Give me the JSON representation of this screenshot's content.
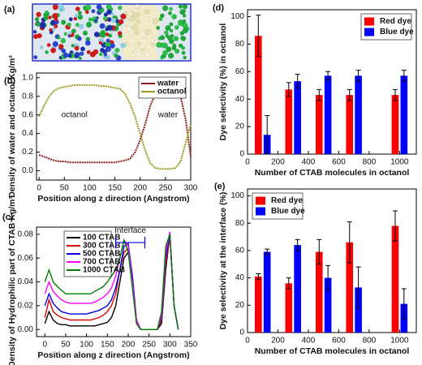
{
  "image_panel": {
    "label": "(a)"
  },
  "chart_data": [
    {
      "type": "line",
      "panel_label": "(b)",
      "x_label": "Position along z direction (Angstrom)",
      "y_label": "Density of water and octanol Kg/m³",
      "x": [
        0,
        10,
        20,
        30,
        40,
        50,
        60,
        70,
        80,
        90,
        100,
        110,
        120,
        130,
        140,
        150,
        160,
        170,
        180,
        190,
        200,
        210,
        220,
        230,
        240,
        250,
        260,
        270,
        280,
        290,
        300
      ],
      "series": [
        {
          "name": "water",
          "color": "#8b1a1a",
          "values": [
            0.17,
            0.15,
            0.13,
            0.11,
            0.1,
            0.1,
            0.09,
            0.09,
            0.09,
            0.09,
            0.09,
            0.09,
            0.09,
            0.09,
            0.09,
            0.09,
            0.1,
            0.11,
            0.13,
            0.2,
            0.33,
            0.5,
            0.7,
            0.82,
            0.85,
            0.86,
            0.86,
            0.85,
            0.8,
            0.55,
            0.15
          ]
        },
        {
          "name": "octanol",
          "color": "#9a9a1a",
          "values": [
            0.58,
            0.7,
            0.8,
            0.86,
            0.89,
            0.9,
            0.91,
            0.92,
            0.92,
            0.92,
            0.92,
            0.92,
            0.91,
            0.91,
            0.9,
            0.89,
            0.88,
            0.83,
            0.72,
            0.58,
            0.4,
            0.22,
            0.08,
            0.03,
            0.02,
            0.02,
            0.02,
            0.03,
            0.1,
            0.3,
            0.5
          ]
        }
      ],
      "annotations": [
        "octanol",
        "water"
      ],
      "xlim": [
        -5,
        300
      ],
      "ylim": [
        -0.1,
        1.05
      ],
      "xticks": [
        0,
        50,
        100,
        150,
        200,
        250,
        300
      ],
      "yticks": [
        {
          "value": 0,
          "label": "0.0"
        },
        {
          "value": 0.2,
          "label": "0.2"
        },
        {
          "value": 0.4,
          "label": "0.4"
        },
        {
          "value": 0.6,
          "label": "0.6"
        },
        {
          "value": 0.8,
          "label": "0.8"
        },
        {
          "value": 1,
          "label": "1.0"
        }
      ],
      "legend": "top-right"
    },
    {
      "type": "line",
      "panel_label": "(c)",
      "x_label": "Position along z direction (Angstrom)",
      "y_label": "Density of Hydrophilic part of CTAB Kg/m³",
      "x": [
        0,
        10,
        20,
        30,
        40,
        50,
        60,
        70,
        80,
        90,
        100,
        110,
        120,
        130,
        140,
        150,
        160,
        170,
        180,
        190,
        200,
        210,
        220,
        230,
        240,
        250,
        260,
        270,
        280,
        290,
        300,
        310,
        320
      ],
      "series": [
        {
          "name": "100 CTAB",
          "color": "#000000",
          "values": [
            0.005,
            0.015,
            0.008,
            0.005,
            0.004,
            0.004,
            0.003,
            0.003,
            0.003,
            0.003,
            0.003,
            0.003,
            0.003,
            0.004,
            0.005,
            0.006,
            0.01,
            0.02,
            0.04,
            0.06,
            0.065,
            0.04,
            0.005,
            0,
            0,
            0,
            0,
            0,
            0.005,
            0.05,
            0.08,
            0.02,
            0
          ]
        },
        {
          "name": "300 CTAB",
          "color": "#e00000",
          "values": [
            0.01,
            0.025,
            0.015,
            0.012,
            0.01,
            0.009,
            0.008,
            0.008,
            0.008,
            0.008,
            0.008,
            0.008,
            0.009,
            0.01,
            0.012,
            0.015,
            0.02,
            0.03,
            0.05,
            0.065,
            0.068,
            0.045,
            0.008,
            0,
            0,
            0,
            0,
            0,
            0.008,
            0.055,
            0.078,
            0.02,
            0
          ]
        },
        {
          "name": "500 CTAB",
          "color": "#0000e0",
          "values": [
            0.02,
            0.03,
            0.022,
            0.018,
            0.015,
            0.014,
            0.013,
            0.013,
            0.013,
            0.013,
            0.013,
            0.014,
            0.015,
            0.016,
            0.018,
            0.02,
            0.025,
            0.035,
            0.05,
            0.07,
            0.072,
            0.045,
            0.008,
            0,
            0,
            0,
            0,
            0,
            0.01,
            0.06,
            0.08,
            0.02,
            0
          ]
        },
        {
          "name": "700 CTAB",
          "color": "#ff00ff",
          "values": [
            0.03,
            0.04,
            0.032,
            0.028,
            0.025,
            0.023,
            0.022,
            0.022,
            0.022,
            0.022,
            0.022,
            0.022,
            0.023,
            0.025,
            0.027,
            0.03,
            0.035,
            0.045,
            0.06,
            0.075,
            0.07,
            0.04,
            0.008,
            0,
            0,
            0,
            0,
            0,
            0.012,
            0.065,
            0.082,
            0.02,
            0
          ]
        },
        {
          "name": "1000 CTAB",
          "color": "#008000",
          "values": [
            0.04,
            0.05,
            0.04,
            0.036,
            0.033,
            0.03,
            0.03,
            0.03,
            0.03,
            0.03,
            0.03,
            0.03,
            0.032,
            0.034,
            0.036,
            0.04,
            0.045,
            0.05,
            0.06,
            0.075,
            0.065,
            0.035,
            0.005,
            0,
            0,
            0,
            0,
            0,
            0.015,
            0.07,
            0.08,
            0.02,
            0
          ]
        }
      ],
      "annotations": [
        "Interface"
      ],
      "xlim": [
        -20,
        350
      ],
      "ylim": [
        -0.006,
        0.086
      ],
      "xticks": [
        0,
        50,
        100,
        150,
        200,
        250,
        300,
        350
      ],
      "yticks": [
        {
          "value": 0,
          "label": "0.00"
        },
        {
          "value": 0.02,
          "label": "0.02"
        },
        {
          "value": 0.04,
          "label": "0.04"
        },
        {
          "value": 0.06,
          "label": "0.06"
        },
        {
          "value": 0.08,
          "label": "0.08"
        }
      ],
      "legend": "top-left"
    },
    {
      "type": "bar",
      "panel_label": "(d)",
      "x_label": "Number of CTAB molecules in octanol",
      "y_label": "Dye selectivity (%) in octanol",
      "x": [
        100,
        300,
        500,
        700,
        1000
      ],
      "series": [
        {
          "name": "Red dye",
          "color": "#ff0000",
          "values": [
            86,
            47,
            43,
            43,
            43
          ],
          "errors": [
            15,
            5,
            4,
            4,
            4
          ]
        },
        {
          "name": "Blue dye",
          "color": "#0000ff",
          "values": [
            14,
            53,
            57,
            57,
            57
          ],
          "errors": [
            14,
            5,
            3,
            4,
            4
          ]
        }
      ],
      "xlim": [
        0,
        1110
      ],
      "ylim": [
        0,
        105
      ],
      "xticks": [
        0,
        200,
        400,
        600,
        800,
        1000
      ],
      "yticks": [
        0,
        20,
        40,
        60,
        80,
        100
      ],
      "legend": "top-right"
    },
    {
      "type": "bar",
      "panel_label": "(e)",
      "x_label": "Number of CTAB molecules in octanol",
      "y_label": "Dye selectivity at the interface (%)",
      "x": [
        100,
        300,
        500,
        700,
        1000
      ],
      "series": [
        {
          "name": "Red dye",
          "color": "#ff0000",
          "values": [
            41,
            36,
            59,
            66,
            78
          ],
          "errors": [
            2,
            4,
            9,
            15,
            11
          ]
        },
        {
          "name": "Blue dye",
          "color": "#0000ff",
          "values": [
            59,
            64,
            40,
            33,
            21
          ],
          "errors": [
            2,
            4,
            9,
            15,
            11
          ]
        }
      ],
      "xlim": [
        0,
        1110
      ],
      "ylim": [
        0,
        105
      ],
      "xticks": [
        0,
        200,
        400,
        600,
        800,
        1000
      ],
      "yticks": [
        0,
        20,
        40,
        60,
        80,
        100
      ],
      "legend": "top-left"
    }
  ]
}
